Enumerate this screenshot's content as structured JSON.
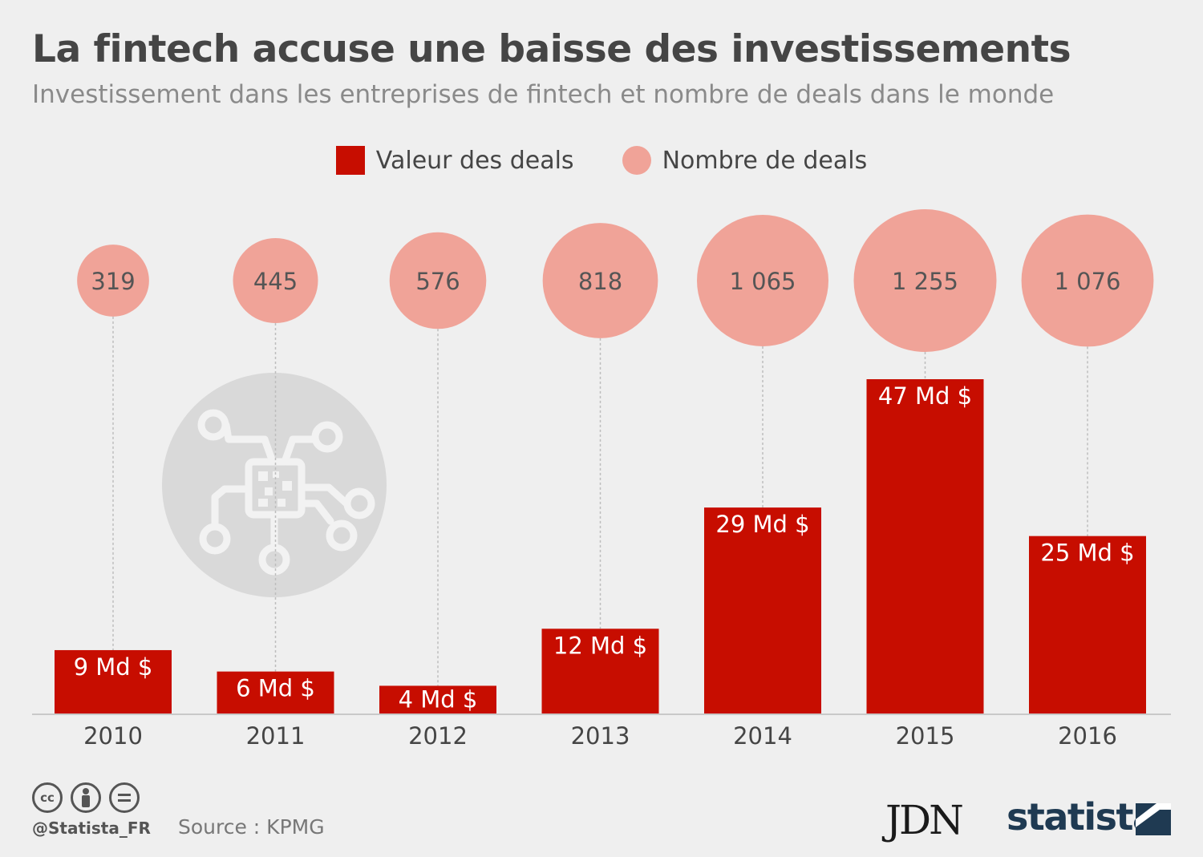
{
  "header": {
    "title": "La fintech accuse une baisse des investissements",
    "subtitle": "Investissement dans les entreprises de fintech et nombre de deals dans le monde"
  },
  "legend": {
    "bar_label": "Valeur des deals",
    "bubble_label": "Nombre de deals"
  },
  "colors": {
    "bar": "#c70d00",
    "bubble": "#f0a398",
    "icon_circle": "#d9d9d9"
  },
  "chart_data": {
    "type": "bar",
    "categories": [
      "2010",
      "2011",
      "2012",
      "2013",
      "2014",
      "2015",
      "2016"
    ],
    "series": [
      {
        "name": "Valeur des deals",
        "values": [
          9,
          6,
          4,
          12,
          29,
          47,
          25
        ],
        "labels": [
          "9 Md $",
          "6 Md $",
          "4 Md $",
          "12 Md $",
          "29 Md $",
          "47 Md $",
          "25 Md $"
        ]
      },
      {
        "name": "Nombre de deals",
        "values": [
          319,
          445,
          576,
          818,
          1065,
          1255,
          1076
        ],
        "labels": [
          "319",
          "445",
          "576",
          "818",
          "1 065",
          "1 255",
          "1 076"
        ]
      }
    ],
    "legend_position": "top-center",
    "grid": false
  },
  "footer": {
    "handle": "@Statista_FR",
    "source": "Source : KPMG",
    "cc_icons": [
      "cc-icon",
      "by-icon",
      "nd-icon"
    ],
    "cc_text": "cc",
    "brand_jdn": "JDN",
    "brand_statista": "statista"
  }
}
